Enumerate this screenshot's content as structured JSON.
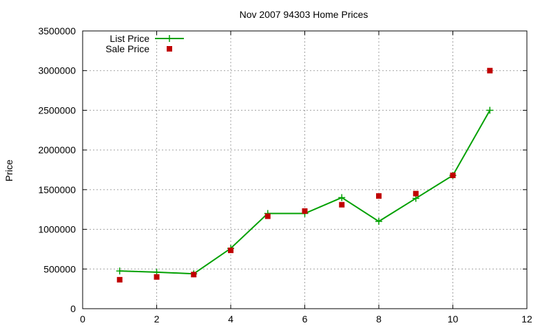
{
  "chart_data": {
    "type": "line",
    "title": "Nov 2007 94303 Home Prices",
    "xlabel": "",
    "ylabel": "Price",
    "xlim": [
      0,
      12
    ],
    "ylim": [
      0,
      3500000
    ],
    "x_ticks": [
      "0",
      "2",
      "4",
      "6",
      "8",
      "10",
      "12"
    ],
    "y_ticks": [
      "0",
      "500000",
      "1000000",
      "1500000",
      "2000000",
      "2500000",
      "3000000",
      "3500000"
    ],
    "grid": true,
    "legend_position": "top-left",
    "series": [
      {
        "name": "List Price",
        "style": "line-plus",
        "color": "#00a000",
        "x": [
          1,
          2,
          3,
          4,
          5,
          6,
          7,
          8,
          9,
          10,
          11
        ],
        "y": [
          475000,
          460000,
          440000,
          760000,
          1200000,
          1200000,
          1400000,
          1100000,
          1390000,
          1680000,
          2500000
        ]
      },
      {
        "name": "Sale Price",
        "style": "square-points",
        "color": "#c00000",
        "x": [
          1,
          2,
          3,
          4,
          5,
          6,
          7,
          8,
          9,
          10,
          11
        ],
        "y": [
          365000,
          400000,
          430000,
          735000,
          1165000,
          1230000,
          1310000,
          1420000,
          1450000,
          1680000,
          3000000
        ]
      }
    ]
  }
}
